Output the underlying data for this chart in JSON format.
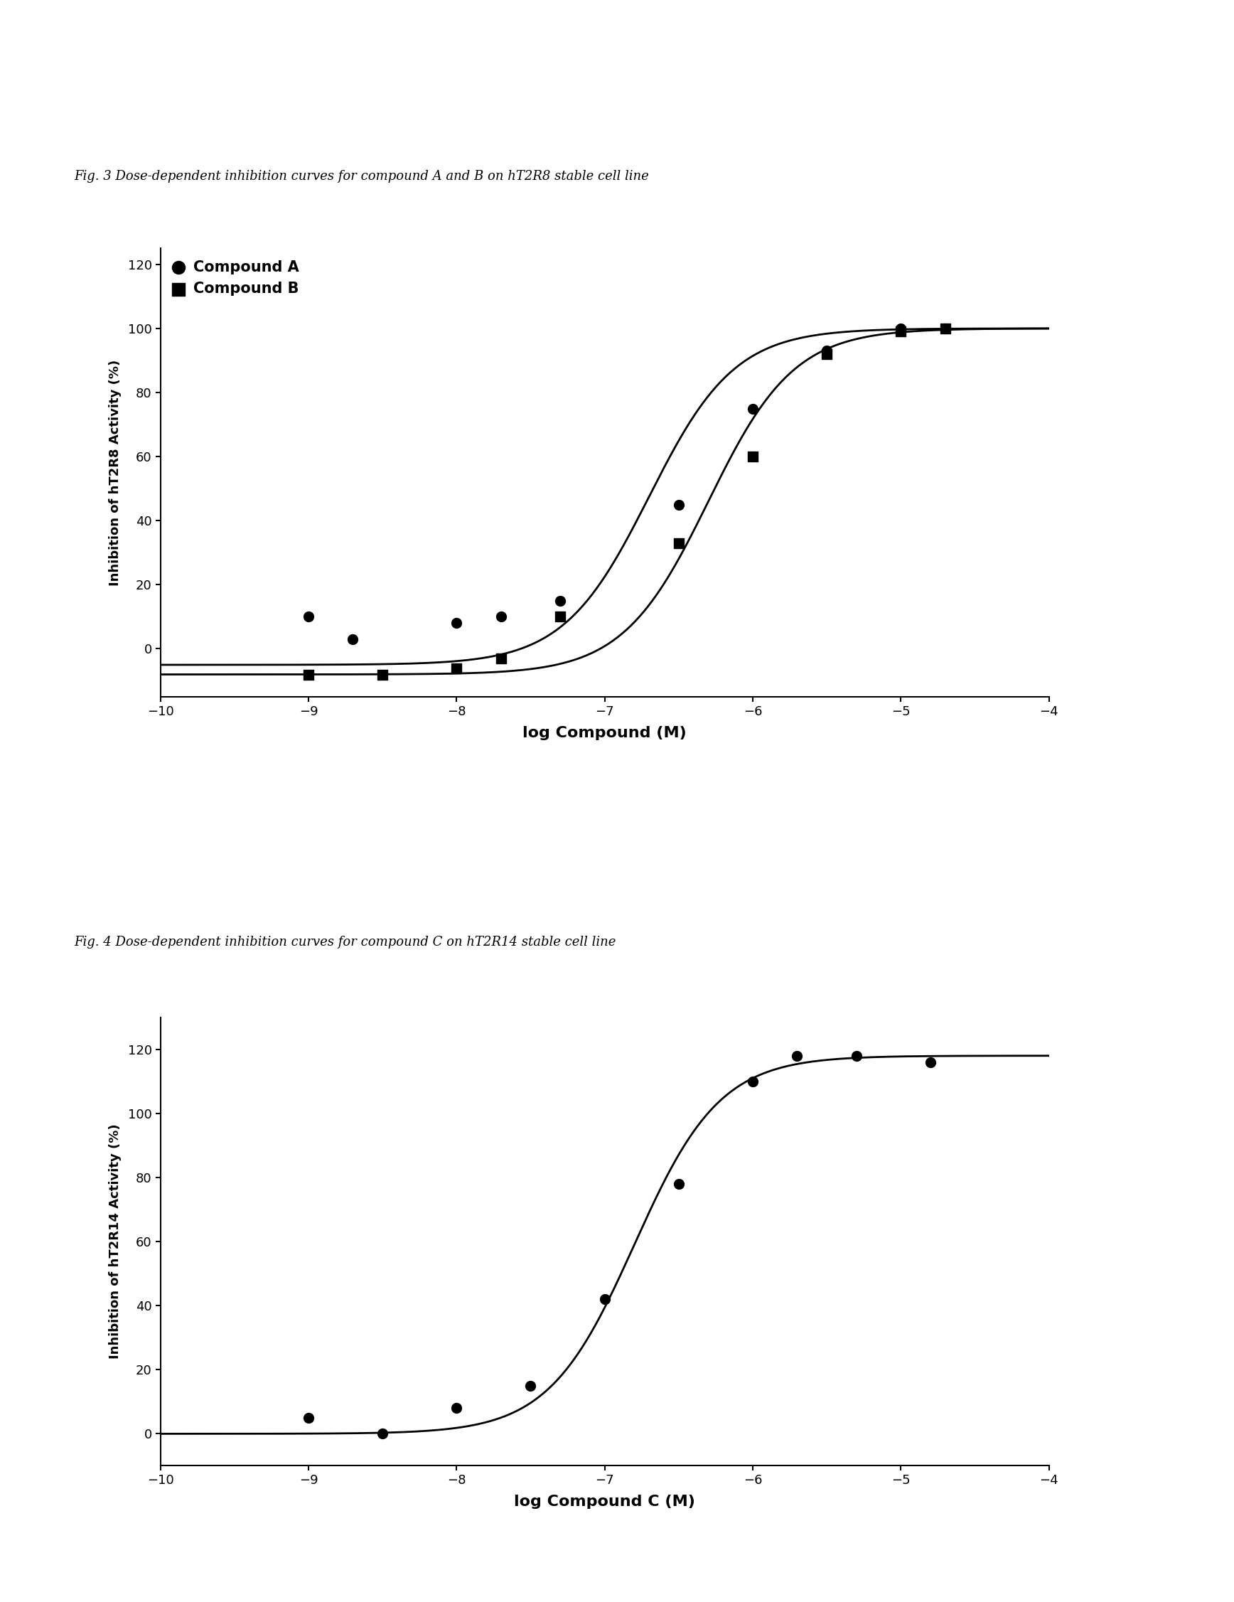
{
  "fig3_title": "Fig. 3 Dose-dependent inhibition curves for compound A and B on hT2R8 stable cell line",
  "fig4_title": "Fig. 4 Dose-dependent inhibition curves for compound C on hT2R14 stable cell line",
  "compound_A_x": [
    -9.0,
    -8.7,
    -8.0,
    -7.7,
    -7.3,
    -6.5,
    -6.0,
    -5.5,
    -5.0,
    -4.7
  ],
  "compound_A_y": [
    10,
    3,
    8,
    10,
    15,
    45,
    75,
    93,
    100,
    100
  ],
  "compound_B_x": [
    -9.0,
    -8.5,
    -8.0,
    -7.7,
    -7.3,
    -6.5,
    -6.0,
    -5.5,
    -5.0,
    -4.7
  ],
  "compound_B_y": [
    -8,
    -8,
    -6,
    -3,
    10,
    33,
    60,
    92,
    99,
    100
  ],
  "compound_C_x": [
    -9.0,
    -8.5,
    -8.0,
    -7.5,
    -7.0,
    -6.5,
    -6.0,
    -5.7,
    -5.3,
    -4.8
  ],
  "compound_C_y": [
    5,
    0,
    8,
    15,
    42,
    78,
    110,
    118,
    118,
    116
  ],
  "fig3_ylabel": "Inhibition of hT2R8 Activity (%)",
  "fig4_ylabel": "Inhibition of hT2R14 Activity (%)",
  "xlabel1": "log Compound (M)",
  "xlabel2": "log Compound C (M)",
  "xlim": [
    -10,
    -4
  ],
  "fig3_ylim": [
    -15,
    125
  ],
  "fig4_ylim": [
    -10,
    130
  ],
  "xticks": [
    -10,
    -9,
    -8,
    -7,
    -6,
    -5,
    -4
  ],
  "fig3_yticks": [
    0,
    20,
    40,
    60,
    80,
    100,
    120
  ],
  "fig4_yticks": [
    0,
    20,
    40,
    60,
    80,
    100,
    120
  ],
  "background_color": "#ffffff",
  "line_color": "#000000",
  "marker_color": "#000000",
  "legend_A": "Compound A",
  "legend_B": "Compound B"
}
